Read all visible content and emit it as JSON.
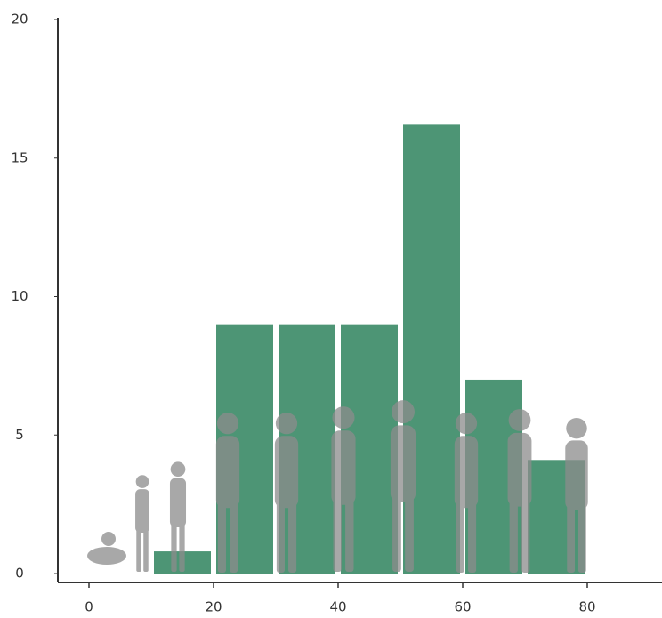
{
  "chart_data": {
    "type": "histogram",
    "bins": [
      10,
      20,
      30,
      40,
      50,
      60,
      70,
      80
    ],
    "values": [
      0.8,
      9,
      9,
      9,
      16.2,
      7,
      4.1
    ],
    "color": "#3a8a66",
    "xlim": [
      -5,
      92
    ],
    "xticks": [
      0,
      20,
      40,
      60,
      80
    ],
    "ylim": [
      0,
      20
    ],
    "yticks": [
      0,
      5,
      10,
      15,
      20
    ]
  }
}
